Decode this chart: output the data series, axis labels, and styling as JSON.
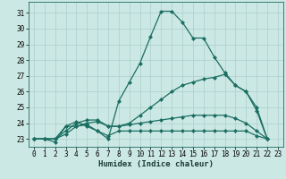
{
  "xlabel": "Humidex (Indice chaleur)",
  "bg_color": "#cce8e4",
  "grid_color": "#aacfcb",
  "line_color": "#1a6e62",
  "xlim": [
    -0.5,
    23.5
  ],
  "ylim": [
    22.5,
    31.7
  ],
  "yticks": [
    23,
    24,
    25,
    26,
    27,
    28,
    29,
    30,
    31
  ],
  "xticks": [
    0,
    1,
    2,
    3,
    4,
    5,
    6,
    7,
    8,
    9,
    10,
    11,
    12,
    13,
    14,
    15,
    16,
    17,
    18,
    19,
    20,
    21,
    22,
    23
  ],
  "series": [
    [
      23.0,
      23.0,
      22.8,
      23.8,
      23.8,
      23.9,
      23.5,
      23.0,
      25.4,
      26.6,
      27.8,
      29.5,
      31.1,
      31.1,
      30.4,
      29.4,
      29.4,
      28.2,
      27.2,
      26.4,
      26.0,
      24.8,
      23.0
    ],
    [
      23.0,
      23.0,
      23.0,
      23.8,
      24.1,
      23.8,
      23.5,
      23.2,
      23.5,
      23.5,
      23.5,
      23.5,
      23.5,
      23.5,
      23.5,
      23.5,
      23.5,
      23.5,
      23.5,
      23.5,
      23.5,
      23.2,
      23.0
    ],
    [
      23.0,
      23.0,
      23.0,
      23.5,
      24.0,
      24.2,
      24.2,
      23.8,
      23.8,
      24.0,
      24.5,
      25.0,
      25.5,
      26.0,
      26.4,
      26.6,
      26.8,
      26.9,
      27.1,
      26.4,
      26.0,
      25.0,
      23.0
    ],
    [
      23.0,
      23.0,
      23.0,
      23.3,
      23.8,
      24.0,
      24.1,
      23.8,
      23.8,
      23.9,
      24.0,
      24.1,
      24.2,
      24.3,
      24.4,
      24.5,
      24.5,
      24.5,
      24.5,
      24.3,
      24.0,
      23.5,
      23.0
    ]
  ],
  "marker": "D",
  "markersize": 2.0,
  "linewidth": 0.9,
  "tick_fontsize": 5.5,
  "xlabel_fontsize": 6.5
}
